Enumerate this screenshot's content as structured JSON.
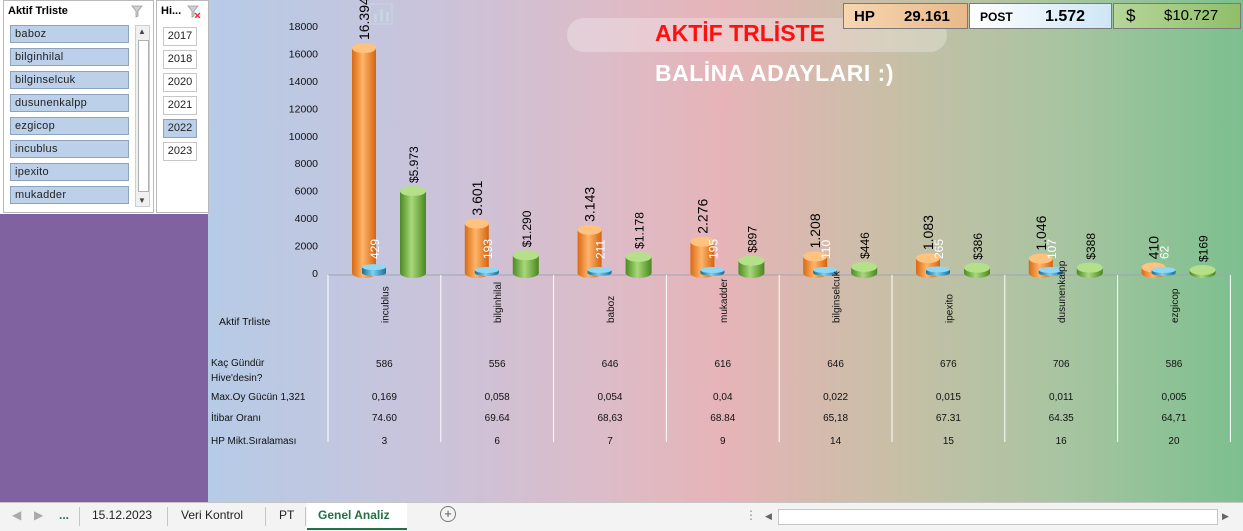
{
  "slicer_trliste": {
    "header": "Aktif Trliste",
    "items": [
      "baboz",
      "bilginhilal",
      "bilginselcuk",
      "dusunenkalpp",
      "ezgicop",
      "incublus",
      "ipexito",
      "mukadder"
    ]
  },
  "slicer_year": {
    "header": "Hi...",
    "items": [
      "2017",
      "2018",
      "2020",
      "2021",
      "2022",
      "2023"
    ],
    "selected": "2022"
  },
  "title": {
    "line1": "AKTİF TRLİSTE",
    "line2": "BALİNA ADAYLARI :)"
  },
  "kpis": {
    "hp_label": "HP",
    "hp_value": "29.161",
    "post_label": "POST",
    "post_value": "1.572",
    "dollar_label": "$",
    "dollar_value": "$10.727"
  },
  "chart_data": {
    "type": "bar",
    "xlabel": "Aktif Trliste",
    "ylim": [
      0,
      18000
    ],
    "yticks": [
      "0",
      "2000",
      "4000",
      "6000",
      "8000",
      "10000",
      "12000",
      "14000",
      "16000",
      "18000"
    ],
    "categories": [
      "incublus",
      "bilginhilal",
      "baboz",
      "mukadder",
      "bilginselcuk",
      "ipexito",
      "dusunenkalpp",
      "ezgicop"
    ],
    "series": [
      {
        "color": "#f28a2a",
        "values": [
          16394,
          3601,
          3143,
          2276,
          1208,
          1083,
          1046,
          410
        ],
        "labels": [
          "16.394",
          "3.601",
          "3.143",
          "2.276",
          "1.208",
          "1.083",
          "1.046",
          "410"
        ]
      },
      {
        "color": "#2e9ac8",
        "values": [
          429,
          193,
          211,
          195,
          110,
          265,
          107,
          62
        ],
        "labels": [
          "429",
          "193",
          "211",
          "195",
          "110",
          "265",
          "107",
          "62"
        ]
      },
      {
        "color": "#6aa83a",
        "values": [
          5973,
          1290,
          1178,
          897,
          446,
          386,
          388,
          169
        ],
        "labels": [
          "$5.973",
          "$1.290",
          "$1.178",
          "$897",
          "$446",
          "$386",
          "$388",
          "$169"
        ]
      }
    ]
  },
  "table": {
    "rows": [
      {
        "label": "Kaç Gündür",
        "values": [
          "586",
          "556",
          "646",
          "616",
          "646",
          "676",
          "706",
          "586"
        ]
      },
      {
        "label": "Hive'desin?",
        "values": []
      },
      {
        "label": "Max.Oy Gücün 1,321",
        "values": [
          "0,169",
          "0,058",
          "0,054",
          "0,04",
          "0,022",
          "0,015",
          "0,011",
          "0,005"
        ]
      },
      {
        "label": "İtibar Oranı",
        "values": [
          "74.60",
          "69.64",
          "68,63",
          "68.84",
          "65,18",
          "67.31",
          "64.35",
          "64,71"
        ]
      },
      {
        "label": "HP Mikt.Sıralaması",
        "values": [
          "3",
          "6",
          "7",
          "9",
          "14",
          "15",
          "16",
          "20"
        ]
      }
    ]
  },
  "tabs": {
    "more": "...",
    "items": [
      "15.12.2023",
      "Veri Kontrol",
      "PT",
      "Genel Analiz"
    ],
    "active": "Genel Analiz"
  }
}
